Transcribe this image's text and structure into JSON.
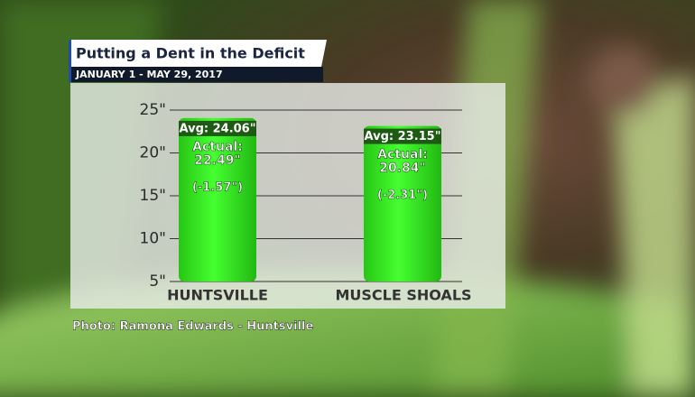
{
  "chart_data": {
    "type": "bar",
    "title": "Putting a Dent in the Deficit",
    "subtitle": "JANUARY 1 - MAY 29, 2017",
    "categories": [
      "HUNTSVILLE",
      "MUSCLE SHOALS"
    ],
    "values": [
      24.06,
      23.15
    ],
    "value_labels": [
      "Avg: 24.06\"",
      "Avg: 23.15\""
    ],
    "color": "#2ee81c",
    "actual": {
      "label": "Actual:",
      "values": [
        22.49,
        20.84
      ],
      "value_labels": [
        "22.49\"",
        "20.84\""
      ]
    },
    "difference": {
      "values": [
        -1.57,
        -2.31
      ],
      "value_labels": [
        "(-1.57\")",
        "(-2.31\")"
      ]
    },
    "ylim": [
      5,
      25
    ],
    "yticks": [
      {
        "value": 5,
        "label": "5\""
      },
      {
        "value": 10,
        "label": "10\""
      },
      {
        "value": 15,
        "label": "15\""
      },
      {
        "value": 20,
        "label": "20\""
      },
      {
        "value": 25,
        "label": "25\""
      }
    ],
    "grid": true,
    "source": "Photo: Ramona Edwards - Huntsville"
  }
}
